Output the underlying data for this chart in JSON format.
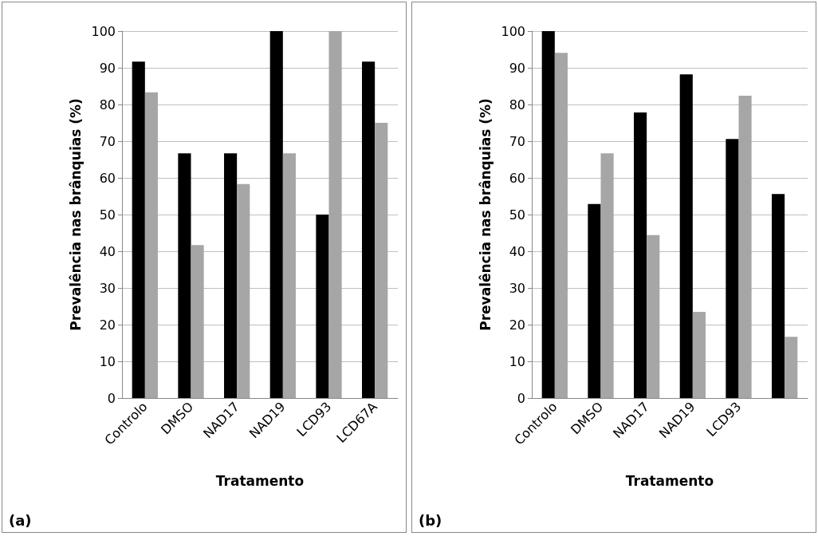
{
  "chart_data": [
    {
      "type": "bar",
      "xlabel": "Tratamento",
      "ylabel": "Prevalência nas brânquias (%)",
      "annotations": [
        "(a)"
      ],
      "categories": [
        "Controlo",
        "DMSO",
        "NAD17",
        "NAD19",
        "LCD93",
        "LCD67A"
      ],
      "series": [
        {
          "color": "#000000",
          "values": [
            91.7,
            66.7,
            66.7,
            100,
            50,
            91.7
          ]
        },
        {
          "color": "#a6a6a6",
          "values": [
            83.3,
            41.7,
            58.3,
            66.7,
            100,
            75
          ]
        }
      ],
      "ylim": [
        0,
        100
      ],
      "yticks": [
        0,
        10,
        20,
        30,
        40,
        50,
        60,
        70,
        80,
        90,
        100
      ],
      "grid": "y"
    },
    {
      "type": "bar",
      "xlabel": "Tratamento",
      "ylabel": "Prevalência nas brânquias (%)",
      "annotations": [
        "(b)"
      ],
      "categories": [
        "Controlo",
        "DMSO",
        "NAD17",
        "NAD19",
        "LCD93",
        null
      ],
      "series": [
        {
          "color": "#000000",
          "values": [
            100,
            52.9,
            77.8,
            88.2,
            70.6,
            55.6
          ]
        },
        {
          "color": "#a6a6a6",
          "values": [
            94.1,
            66.7,
            44.4,
            23.5,
            82.4,
            16.7
          ]
        }
      ],
      "ylim": [
        0,
        100
      ],
      "yticks": [
        0,
        10,
        20,
        30,
        40,
        50,
        60,
        70,
        80,
        90,
        100
      ],
      "grid": "y"
    }
  ]
}
